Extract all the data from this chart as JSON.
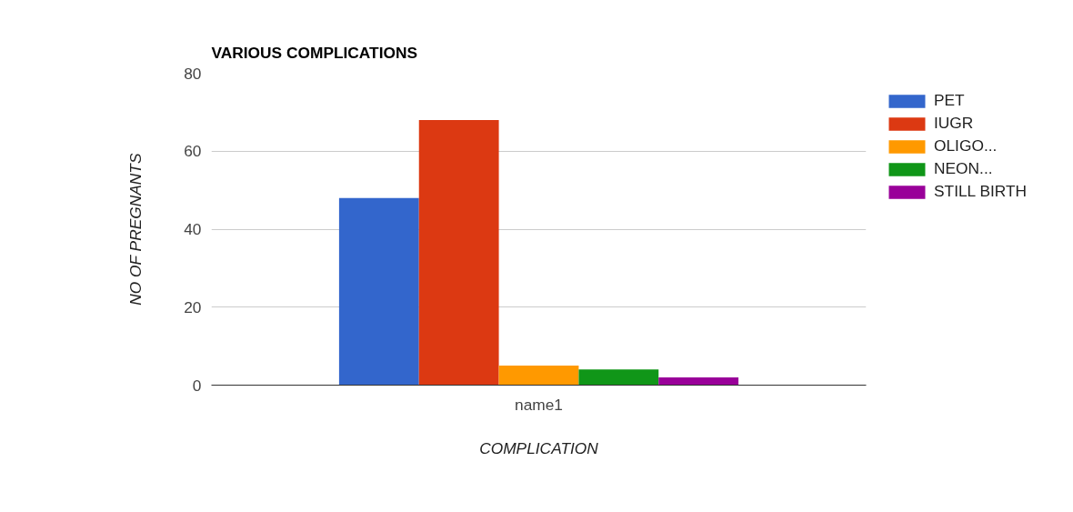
{
  "chart_data": {
    "type": "bar",
    "title": "VARIOUS COMPLICATIONS",
    "xlabel": "COMPLICATION",
    "ylabel": "NO OF PREGNANTS",
    "categories": [
      "name1"
    ],
    "series": [
      {
        "name": "PET",
        "color": "#3366cc",
        "values": [
          48
        ]
      },
      {
        "name": "IUGR",
        "color": "#dc3912",
        "values": [
          68
        ]
      },
      {
        "name": "OLIGO...",
        "color": "#ff9900",
        "values": [
          5
        ]
      },
      {
        "name": "NEON...",
        "color": "#109618",
        "values": [
          4
        ]
      },
      {
        "name": "STILL BIRTH",
        "color": "#990099",
        "values": [
          2
        ]
      }
    ],
    "ylim": [
      0,
      80
    ],
    "yticks": [
      0,
      20,
      40,
      60,
      80
    ],
    "grid": "y",
    "legend": "right"
  }
}
